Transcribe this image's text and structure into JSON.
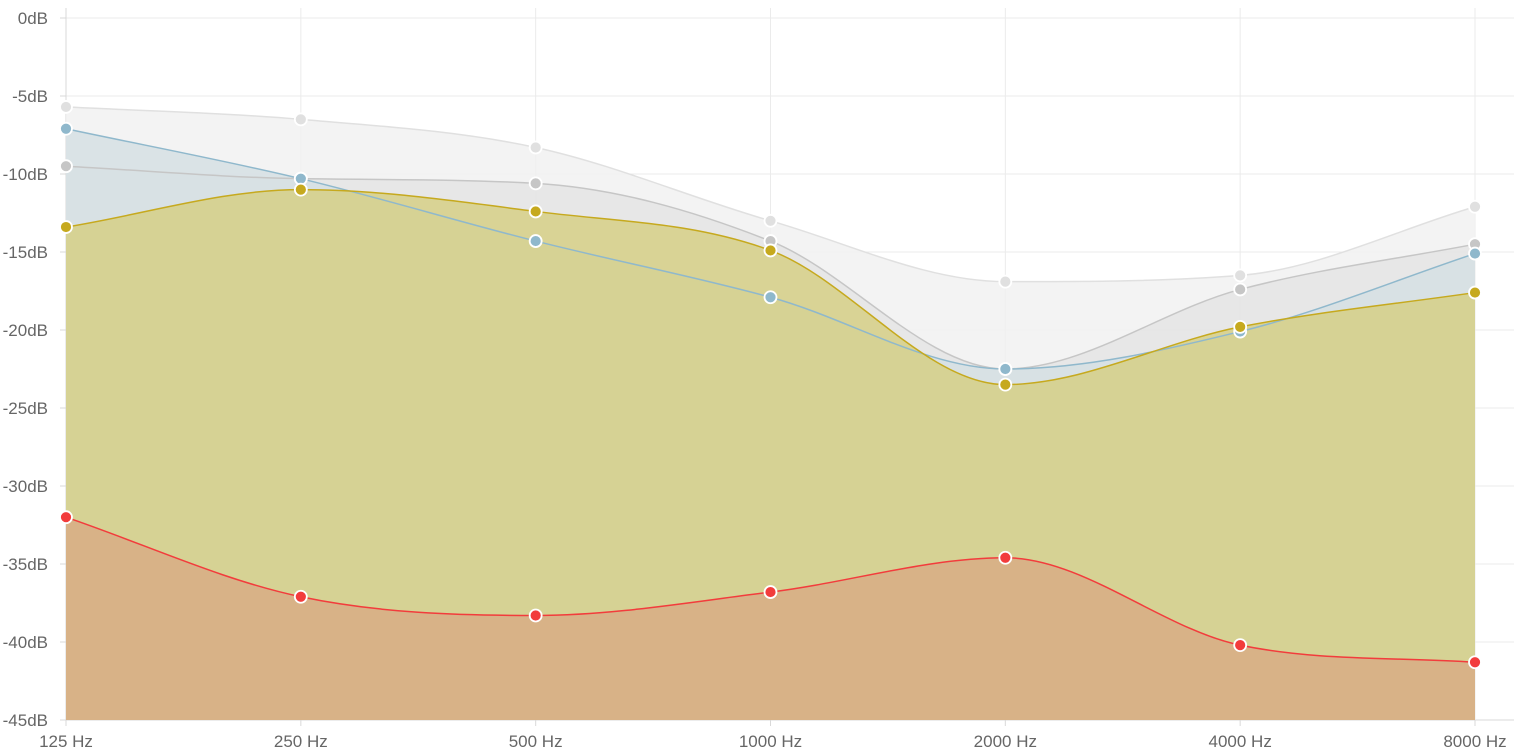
{
  "chart_data": {
    "type": "area",
    "title": "",
    "xlabel": "",
    "ylabel": "",
    "categories": [
      "125 Hz",
      "250 Hz",
      "500 Hz",
      "1000 Hz",
      "2000 Hz",
      "4000 Hz",
      "8000 Hz"
    ],
    "y_ticks": [
      "0dB",
      "-5dB",
      "-10dB",
      "-15dB",
      "-20dB",
      "-25dB",
      "-30dB",
      "-35dB",
      "-40dB",
      "-45dB"
    ],
    "ylim": [
      -45,
      0
    ],
    "grid": true,
    "legend": "none",
    "series": [
      {
        "color": "#e0e0e0",
        "fill": "#f1f1f1",
        "values": [
          -5.7,
          -6.5,
          -8.3,
          -13.0,
          -16.9,
          -16.5,
          -12.1
        ]
      },
      {
        "color": "#c6c6c6",
        "fill": "#e4e4e4",
        "values": [
          -9.5,
          -10.3,
          -10.6,
          -14.3,
          -22.5,
          -17.4,
          -14.5
        ]
      },
      {
        "color": "#8fb8cc",
        "fill": "#d5dfe3",
        "values": [
          -7.1,
          -10.3,
          -14.3,
          -17.9,
          -22.5,
          -20.1,
          -15.1
        ]
      },
      {
        "color": "#c6a91e",
        "fill": "#d6cf86",
        "values": [
          -13.4,
          -11.0,
          -12.4,
          -14.9,
          -23.5,
          -19.8,
          -17.6
        ]
      },
      {
        "color": "#f23c3c",
        "fill": "#d8ad85",
        "values": [
          -32.0,
          -37.1,
          -38.3,
          -36.8,
          -34.6,
          -40.2,
          -41.3
        ]
      }
    ]
  }
}
